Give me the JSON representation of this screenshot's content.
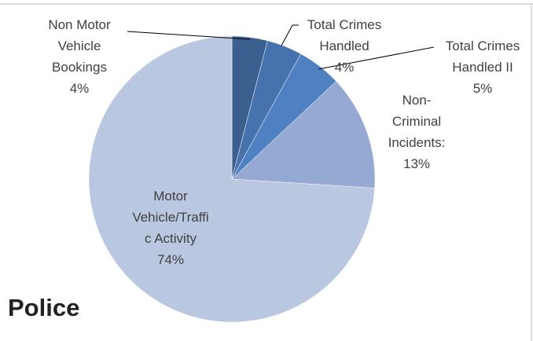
{
  "chart_data": {
    "type": "pie",
    "title": "Police",
    "categories": [
      "Non Motor Vehicle Bookings",
      "Total Crimes Handled",
      "Total Crimes Handled II",
      "Non-Criminal Incidents:",
      "Motor Vehicle/Traffic Activity"
    ],
    "values": [
      4,
      4,
      5,
      13,
      74
    ],
    "value_labels": [
      "4%",
      "4%",
      "5%",
      "13%",
      "74%"
    ],
    "colors": [
      "#3b5f8e",
      "#4673ad",
      "#4f80c2",
      "#95a9d2",
      "#bac7e1"
    ]
  }
}
